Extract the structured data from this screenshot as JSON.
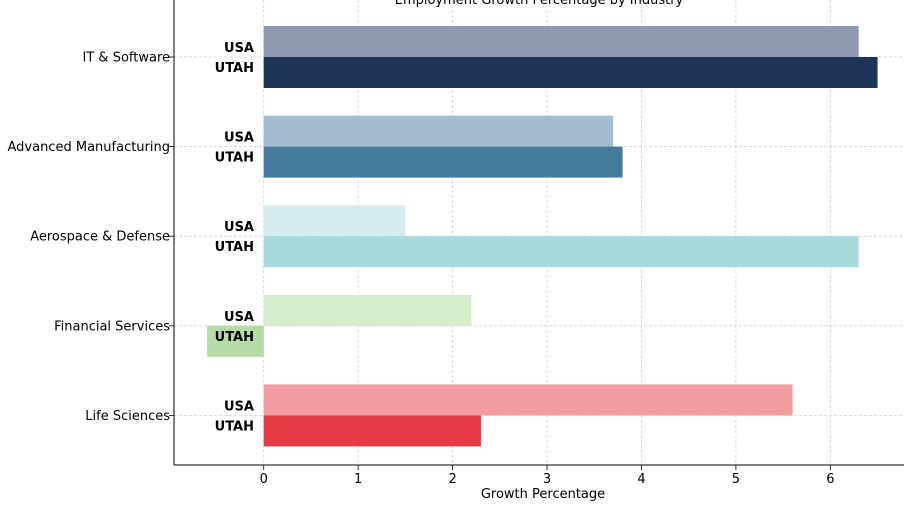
{
  "chart_data": {
    "type": "bar",
    "orientation": "horizontal",
    "title": "Employment Growth Percentage by Industry",
    "xlabel": "Growth Percentage",
    "ylabel": "",
    "xlim": [
      -0.95,
      6.78
    ],
    "x_ticks": [
      0,
      1,
      2,
      3,
      4,
      5,
      6
    ],
    "grid": true,
    "categories": [
      "IT & Software",
      "Advanced Manufacturing",
      "Aerospace & Defense",
      "Financial Services",
      "Life Sciences"
    ],
    "bar_labels": {
      "usa": "USA",
      "utah": "UTAH"
    },
    "series": [
      {
        "name": "USA",
        "values": [
          6.3,
          3.7,
          1.5,
          2.2,
          5.6
        ],
        "colors": [
          "#8e9ab0",
          "#a3bdd0",
          "#d4ecee",
          "#d5edcc",
          "#f39ca2"
        ]
      },
      {
        "name": "UTAH",
        "values": [
          6.5,
          3.8,
          6.3,
          -0.6,
          2.3
        ],
        "colors": [
          "#1c3557",
          "#457b9d",
          "#a8dadc",
          "#b5dba6",
          "#e63946"
        ]
      }
    ]
  }
}
